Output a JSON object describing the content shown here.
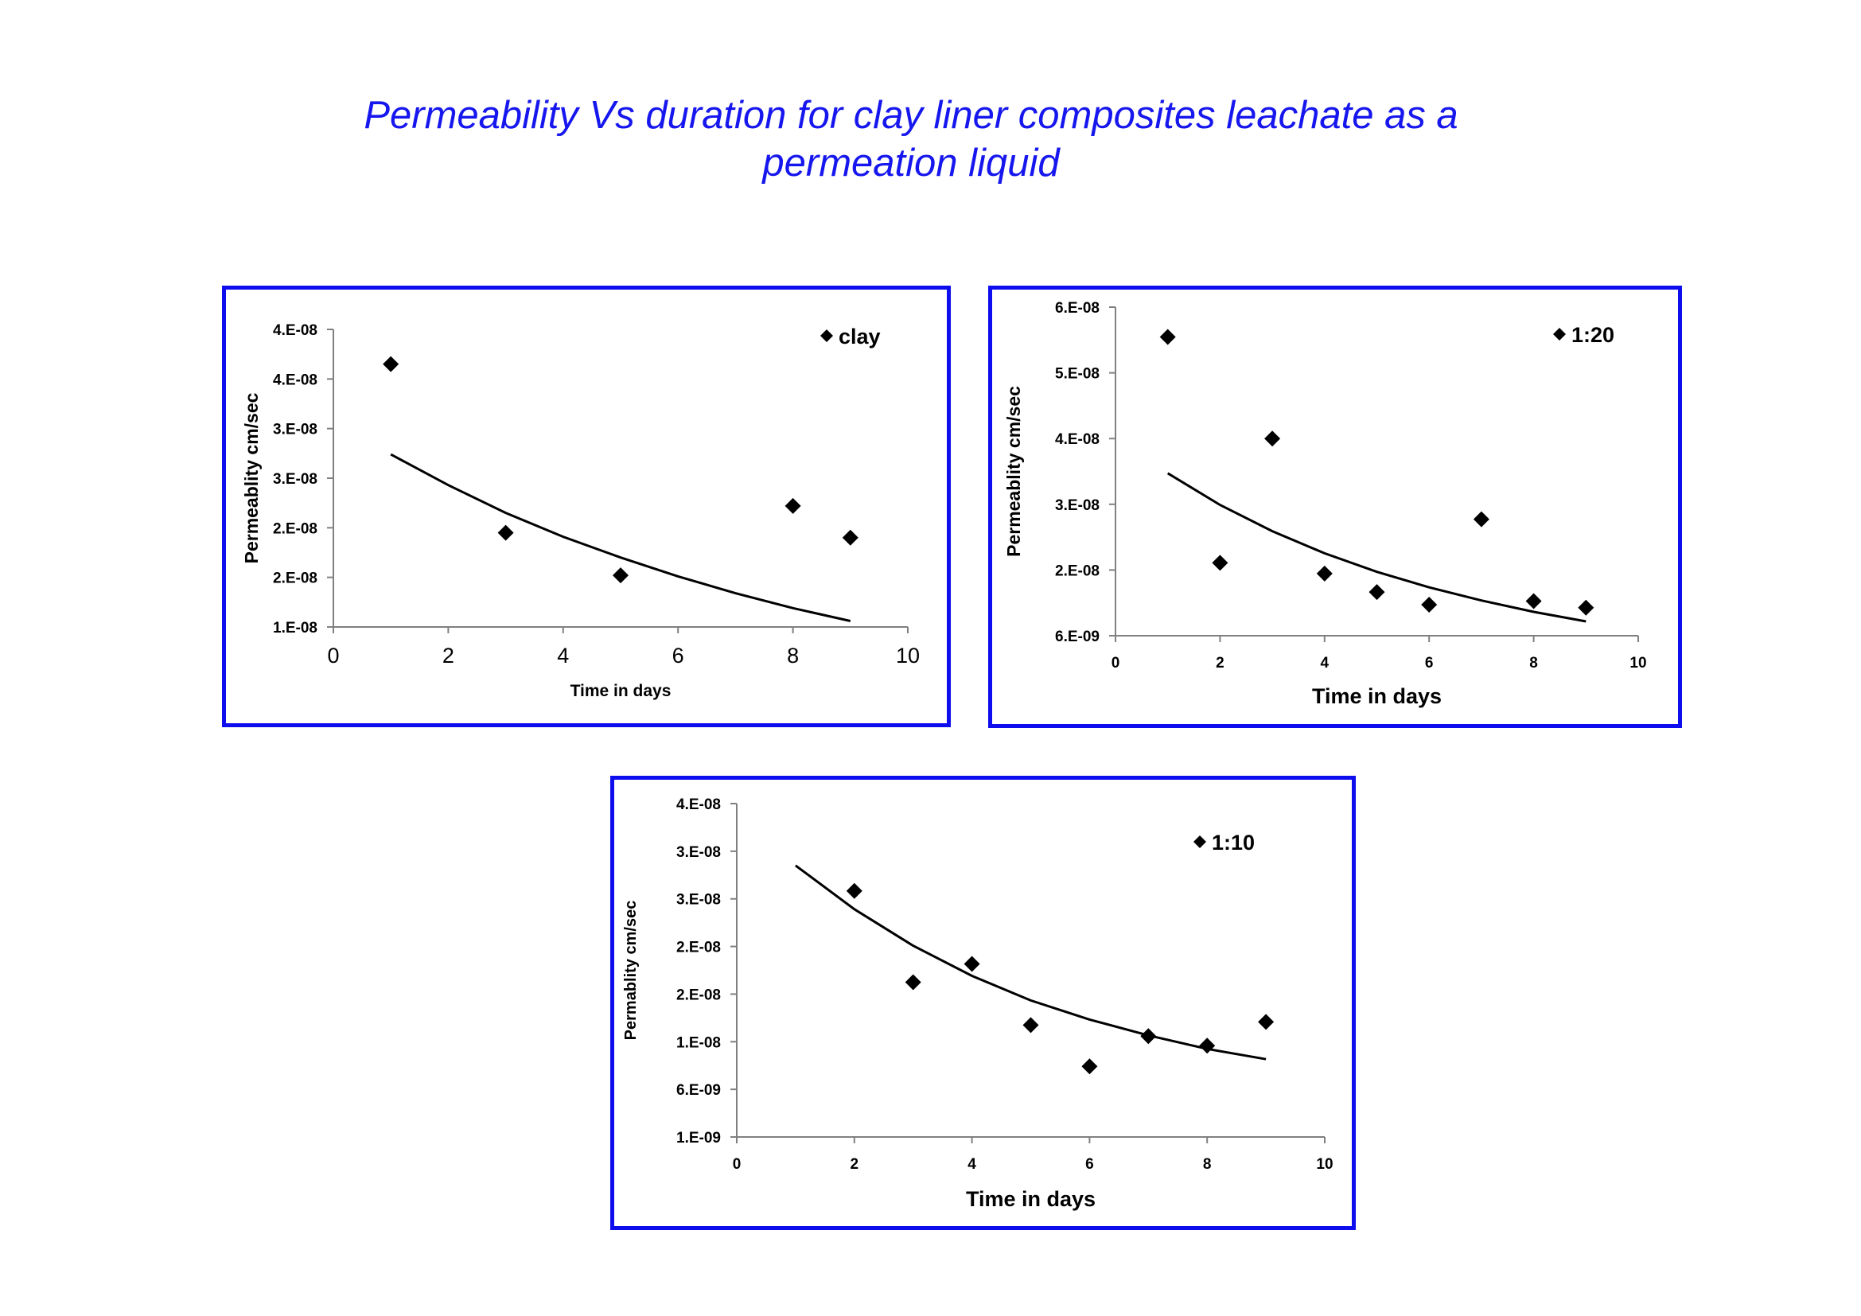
{
  "page_title": {
    "line1": "Permeability Vs duration for clay liner composites leachate as a",
    "line2": "permeation liquid"
  },
  "colors": {
    "title": "#1616ee",
    "panel_border": "#0d0ded",
    "marker": "#000000",
    "trend": "#000000",
    "axis": "#808080"
  },
  "chart_data": [
    {
      "type": "scatter",
      "title": "",
      "legend": [
        "clay"
      ],
      "legend_position": "top-right",
      "xlabel": "Time in days",
      "ylabel": "Permeablity  cm/sec",
      "xlim": [
        0,
        10
      ],
      "x_ticks": [
        "0",
        "2",
        "4",
        "6",
        "8",
        "10"
      ],
      "ylim": [
        1e-08,
        4e-08
      ],
      "y_ticks": [
        "1.E-08",
        "2.E-08",
        "2.E-08",
        "3.E-08",
        "3.E-08",
        "4.E-08",
        "4.E-08"
      ],
      "grid": false,
      "series": [
        {
          "name": "clay",
          "marker": "diamond",
          "x": [
            1,
            3,
            5,
            8,
            9
          ],
          "y": [
            3.65e-08,
            1.95e-08,
            1.52e-08,
            2.22e-08,
            1.9e-08
          ]
        }
      ],
      "trendline": {
        "type": "exponential",
        "x": [
          1,
          2,
          3,
          4,
          5,
          6,
          7,
          8,
          9
        ],
        "y": [
          2.74e-08,
          2.43e-08,
          2.15e-08,
          1.91e-08,
          1.7e-08,
          1.51e-08,
          1.34e-08,
          1.19e-08,
          1.06e-08
        ]
      }
    },
    {
      "type": "scatter",
      "title": "",
      "legend": [
        "1:20"
      ],
      "legend_position": "top-right",
      "xlabel": "Time in days",
      "ylabel": "Permeablity  cm/sec",
      "xlim": [
        0,
        10
      ],
      "x_ticks": [
        "0",
        "2",
        "4",
        "6",
        "8",
        "10"
      ],
      "ylim": [
        6e-09,
        6.1e-08
      ],
      "y_ticks": [
        "6.E-09",
        "2.E-08",
        "3.E-08",
        "4.E-08",
        "5.E-08",
        "6.E-08"
      ],
      "grid": false,
      "series": [
        {
          "name": "1:20",
          "marker": "diamond",
          "x": [
            1,
            2,
            3,
            4,
            5,
            6,
            7,
            8,
            9
          ],
          "y": [
            5.6e-08,
            1.82e-08,
            3.9e-08,
            1.64e-08,
            1.33e-08,
            1.12e-08,
            2.55e-08,
            1.18e-08,
            1.07e-08
          ]
        }
      ],
      "trendline": {
        "type": "exponential",
        "x": [
          1,
          2,
          3,
          4,
          5,
          6,
          7,
          8,
          9
        ],
        "y": [
          3.32e-08,
          2.79e-08,
          2.35e-08,
          1.98e-08,
          1.67e-08,
          1.41e-08,
          1.19e-08,
          1e-08,
          8.4e-09
        ]
      }
    },
    {
      "type": "scatter",
      "title": "",
      "legend": [
        "1:10"
      ],
      "legend_position": "top-right",
      "xlabel": "Time in days",
      "ylabel": "Permablity cm/sec",
      "xlim": [
        0,
        10
      ],
      "x_ticks": [
        "0",
        "2",
        "4",
        "6",
        "8",
        "10"
      ],
      "ylim": [
        1e-09,
        4.3e-08
      ],
      "y_ticks": [
        "1.E-09",
        "6.E-09",
        "1.E-08",
        "2.E-08",
        "2.E-08",
        "3.E-08",
        "3.E-08",
        "4.E-08"
      ],
      "grid": false,
      "series": [
        {
          "name": "1:10",
          "marker": "diamond",
          "x": [
            2,
            3,
            4,
            5,
            6,
            7,
            8,
            9
          ],
          "y": [
            3.2e-08,
            2.05e-08,
            2.28e-08,
            1.51e-08,
            9.9e-09,
            1.37e-08,
            1.25e-08,
            1.55e-08
          ]
        }
      ],
      "trendline": {
        "type": "exponential",
        "x": [
          1,
          2,
          3,
          4,
          5,
          6,
          7,
          8,
          9
        ],
        "y": [
          3.52e-08,
          2.97e-08,
          2.51e-08,
          2.13e-08,
          1.82e-08,
          1.58e-08,
          1.38e-08,
          1.21e-08,
          1.08e-08
        ]
      }
    }
  ]
}
